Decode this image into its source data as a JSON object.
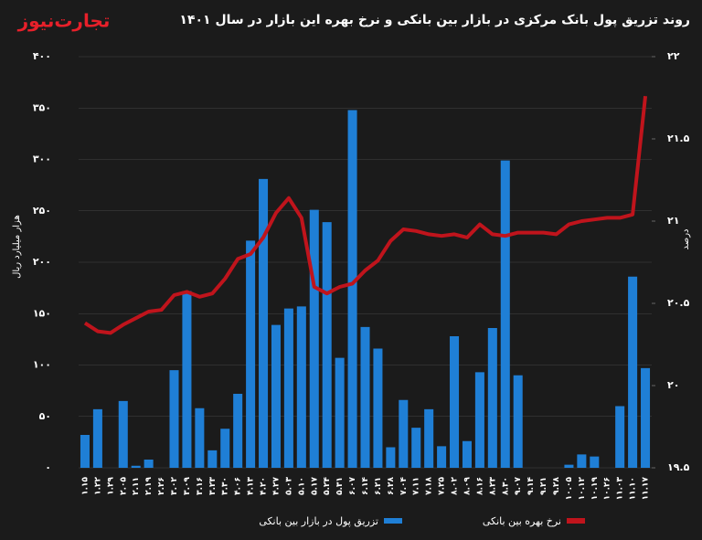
{
  "logo": "تجارت‌نیوز",
  "chart_data": {
    "type": "bar_line",
    "title": "روند تزریق پول بانک مرکزی در بازار بین بانکی و نرخ بهره این بازار در سال ۱۴۰۱",
    "ylabel": "هزار میلیارد ریال",
    "y2label": "درصد",
    "categories": [
      "۱.۱۵",
      "۱.۲۲",
      "۱.۲۹",
      "۲.۰۵",
      "۲.۱۱",
      "۲.۱۹",
      "۲.۲۶",
      "۳.۰۲",
      "۳.۰۹",
      "۳.۱۶",
      "۳.۲۳",
      "۳.۳۰",
      "۴.۰۶",
      "۴.۱۳",
      "۴.۲۰",
      "۴.۲۷",
      "۵.۰۳",
      "۵.۱۰",
      "۵.۱۷",
      "۵.۲۴",
      "۵.۳۱",
      "۶.۰۷",
      "۶.۱۴",
      "۶.۲۱",
      "۶.۲۸",
      "۷.۰۴",
      "۷.۱۱",
      "۷.۱۸",
      "۷.۲۵",
      "۸.۰۲",
      "۸.۰۹",
      "۸.۱۶",
      "۸.۲۳",
      "۸.۳۰",
      "۹.۰۷",
      "۹.۱۴",
      "۹.۲۱",
      "۹.۲۸",
      "۱۰.۰۵",
      "۱۰.۱۲",
      "۱۰.۱۹",
      "۱۰.۲۶",
      "۱۱.۰۳",
      "۱۱.۱۰",
      "۱۱.۱۷"
    ],
    "series": [
      {
        "name": "تزریق پول در بازار بین بانکی",
        "color": "#1f7fd6",
        "type": "bar",
        "values": [
          32,
          57,
          0,
          65,
          2,
          8,
          0,
          95,
          172,
          58,
          17,
          38,
          72,
          221,
          281,
          139,
          155,
          157,
          251,
          239,
          107,
          348,
          137,
          116,
          20,
          66,
          39,
          57,
          21,
          128,
          26,
          93,
          136,
          299,
          90,
          0,
          0,
          0,
          3,
          13,
          11,
          0,
          60,
          186,
          97
        ]
      },
      {
        "name": "نرخ بهره بین بانکی",
        "color": "#c0141c",
        "type": "line",
        "axis": "y2",
        "values": [
          20.38,
          20.33,
          20.32,
          20.37,
          20.41,
          20.45,
          20.46,
          20.55,
          20.57,
          20.54,
          20.56,
          20.65,
          20.77,
          20.8,
          20.9,
          21.05,
          21.14,
          21.02,
          20.6,
          20.56,
          20.6,
          20.62,
          20.7,
          20.76,
          20.88,
          20.95,
          20.94,
          20.92,
          20.91,
          20.92,
          20.9,
          20.98,
          20.92,
          20.91,
          20.93,
          20.93,
          20.93,
          20.92,
          20.98,
          21.0,
          21.01,
          21.02,
          21.02,
          21.04,
          21.76
        ]
      }
    ],
    "ylim": [
      0,
      400
    ],
    "yticks": [
      {
        "value": 0,
        "label": "۰"
      },
      {
        "value": 50,
        "label": "۵۰"
      },
      {
        "value": 100,
        "label": "۱۰۰"
      },
      {
        "value": 150,
        "label": "۱۵۰"
      },
      {
        "value": 200,
        "label": "۲۰۰"
      },
      {
        "value": 250,
        "label": "۲۵۰"
      },
      {
        "value": 300,
        "label": "۳۰۰"
      },
      {
        "value": 350,
        "label": "۳۵۰"
      },
      {
        "value": 400,
        "label": "۴۰۰"
      }
    ],
    "y2lim": [
      19.5,
      22
    ],
    "y2ticks": [
      {
        "value": 19.5,
        "label": "۱۹.۵"
      },
      {
        "value": 20,
        "label": "۲۰"
      },
      {
        "value": 20.5,
        "label": "۲۰.۵"
      },
      {
        "value": 21,
        "label": "۲۱"
      },
      {
        "value": 21.5,
        "label": "۲۱.۵"
      },
      {
        "value": 22,
        "label": "۲۲"
      }
    ],
    "legend": "bottom"
  }
}
